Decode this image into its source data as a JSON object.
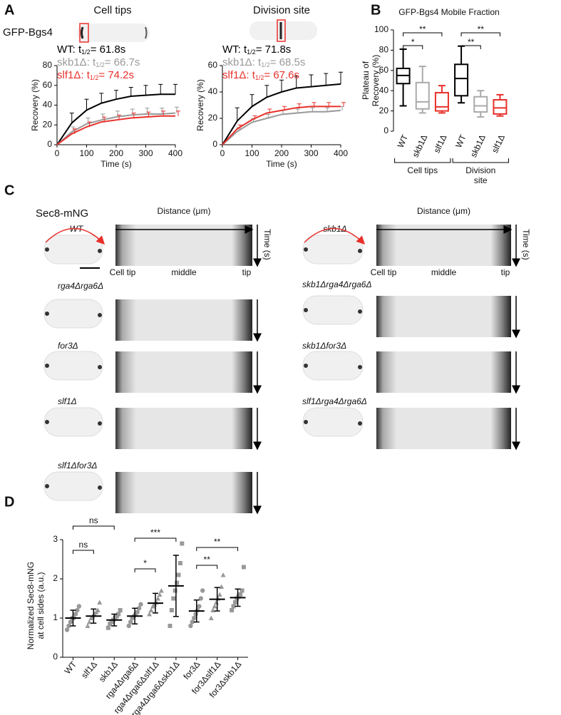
{
  "panel_labels": [
    "A",
    "B",
    "C",
    "D"
  ],
  "panel_a": {
    "reporter": "GFP-Bgs4"
  },
  "chart_data": [
    {
      "type": "line",
      "title": "Cell tips",
      "xlabel": "Time (s)",
      "ylabel": "Recovery (%)",
      "x": [
        0,
        50,
        100,
        150,
        200,
        250,
        300,
        350,
        400
      ],
      "xlim": [
        0,
        400
      ],
      "ylim": [
        0,
        80
      ],
      "xticks": [
        0,
        100,
        200,
        300,
        400
      ],
      "yticks": [
        0,
        20,
        40,
        60,
        80
      ],
      "series": [
        {
          "color": "#000000",
          "label": {
            "prefix": "WT: t",
            "sub": "1/2",
            "suffix": "= 61.8s"
          },
          "values": [
            0,
            22,
            35,
            42,
            46,
            49,
            50,
            51,
            51
          ],
          "errors": [
            null,
            10,
            11,
            10,
            9,
            9,
            10,
            10,
            10
          ]
        },
        {
          "color": "#999999",
          "label": {
            "prefix": "skb1Δ: t",
            "sub": "1/2",
            "suffix": "= 66.7s"
          },
          "values": [
            0,
            13,
            21,
            25,
            28,
            30,
            31,
            31,
            32
          ],
          "errors": [
            null,
            5,
            6,
            6,
            6,
            6,
            6,
            6,
            6
          ]
        },
        {
          "color": "#e8302a",
          "label": {
            "prefix": "slf1Δ: t",
            "sub": "1/2",
            "suffix": "= 74.2s"
          },
          "values": [
            0,
            11,
            18,
            23,
            25,
            27,
            28,
            29,
            29
          ],
          "errors": [
            null,
            5,
            5,
            5,
            5,
            5,
            5,
            5,
            5
          ]
        }
      ]
    },
    {
      "type": "line",
      "title": "Division site",
      "xlabel": "Time (s)",
      "ylabel": "Recovery (%)",
      "x": [
        0,
        50,
        100,
        150,
        200,
        250,
        300,
        350,
        400
      ],
      "xlim": [
        0,
        400
      ],
      "ylim": [
        0,
        60
      ],
      "xticks": [
        0,
        100,
        200,
        300,
        400
      ],
      "yticks": [
        0,
        20,
        40,
        60
      ],
      "series": [
        {
          "color": "#000000",
          "label": {
            "prefix": "WT: t",
            "sub": "1/2",
            "suffix": "= 71.8s"
          },
          "values": [
            0,
            18,
            29,
            36,
            40,
            43,
            44,
            45,
            46
          ],
          "errors": [
            null,
            10,
            9,
            9,
            9,
            9,
            9,
            9,
            9
          ]
        },
        {
          "color": "#999999",
          "label": {
            "prefix": "skb1Δ: t",
            "sub": "1/2",
            "suffix": "= 68.5s"
          },
          "values": [
            0,
            10,
            17,
            20,
            23,
            24,
            25,
            25,
            26
          ],
          "errors": [
            null,
            3,
            3,
            3,
            3,
            3,
            3,
            3,
            3
          ]
        },
        {
          "color": "#e8302a",
          "label": {
            "prefix": "slf1Δ: t",
            "sub": "1/2",
            "suffix": "= 67.6s"
          },
          "values": [
            0,
            12,
            19,
            24,
            26,
            28,
            29,
            29,
            29
          ],
          "errors": [
            null,
            3,
            3,
            3,
            3,
            3,
            3,
            3,
            3
          ]
        }
      ]
    },
    {
      "type": "box",
      "title": "GFP-Bgs4 Mobile Fraction",
      "ylabel_lines": [
        "Plateau of",
        "Recovery (%)"
      ],
      "ylim": [
        0,
        100
      ],
      "yticks": [
        0,
        20,
        40,
        60,
        80,
        100
      ],
      "categories": [
        "WT",
        "skb1Δ",
        "slf1Δ",
        "WT",
        "skb1Δ",
        "slf1Δ"
      ],
      "colors": [
        "#000000",
        "#aaaaaa",
        "#e8302a",
        "#000000",
        "#aaaaaa",
        "#e8302a"
      ],
      "boxes": [
        {
          "min": 25,
          "q1": 47,
          "median": 55,
          "q3": 62,
          "max": 81
        },
        {
          "min": 18,
          "q1": 22,
          "median": 29,
          "q3": 48,
          "max": 64
        },
        {
          "min": 18,
          "q1": 20,
          "median": 24,
          "q3": 38,
          "max": 45
        },
        {
          "min": 28,
          "q1": 35,
          "median": 52,
          "q3": 66,
          "max": 84
        },
        {
          "min": 14,
          "q1": 19,
          "median": 25,
          "q3": 34,
          "max": 40
        },
        {
          "min": 15,
          "q1": 17,
          "median": 23,
          "q3": 31,
          "max": 36
        }
      ],
      "groups": [
        {
          "lines": [
            "Cell tips"
          ],
          "from": 0,
          "to": 2
        },
        {
          "lines": [
            "Division",
            "site"
          ],
          "from": 3,
          "to": 5
        }
      ],
      "brackets": [
        {
          "label": "**",
          "from": 0,
          "to": 2
        },
        {
          "label": "*",
          "from": 0,
          "to": 1
        },
        {
          "label": "**",
          "from": 3,
          "to": 5
        },
        {
          "label": "**",
          "from": 3,
          "to": 4
        }
      ]
    },
    {
      "type": "dot",
      "ylabel_lines": [
        "Normalized Sec8-mNG",
        "at cell sides (a.u.)"
      ],
      "ylim": [
        0,
        3
      ],
      "yticks": [
        0,
        1,
        2,
        3
      ],
      "categories": [
        "WT",
        "slf1Δ",
        "skb1Δ",
        "rga4Δrga6Δ",
        "rga4Δrga6Δslf1Δ",
        "rga4Δrga6Δskb1Δ",
        "for3Δ",
        "for3Δslf1Δ",
        "for3Δskb1Δ"
      ],
      "color": "#999999",
      "markers": [
        "circle",
        "triangle",
        "square",
        "circle",
        "triangle",
        "square",
        "circle",
        "triangle",
        "square"
      ],
      "points": [
        [
          0.7,
          0.8,
          0.9,
          1.0,
          1.0,
          1.1,
          1.2,
          1.3
        ],
        [
          0.8,
          0.9,
          1.0,
          1.05,
          1.1,
          1.15,
          1.2,
          1.4
        ],
        [
          0.75,
          0.85,
          0.9,
          0.95,
          1.0,
          1.05,
          1.1,
          1.2
        ],
        [
          0.8,
          0.9,
          1.0,
          1.05,
          1.1,
          1.15,
          1.25,
          1.35
        ],
        [
          1.1,
          1.2,
          1.3,
          1.35,
          1.4,
          1.5,
          1.6,
          1.7
        ],
        [
          0.8,
          1.2,
          1.5,
          1.7,
          1.9,
          2.1,
          2.4,
          2.9
        ],
        [
          0.8,
          0.9,
          1.0,
          1.1,
          1.2,
          1.3,
          1.5,
          1.7
        ],
        [
          1.0,
          1.2,
          1.3,
          1.4,
          1.5,
          1.6,
          1.8,
          2.1
        ],
        [
          1.2,
          1.3,
          1.4,
          1.5,
          1.55,
          1.6,
          1.7,
          2.3
        ]
      ],
      "means": [
        1.0,
        1.05,
        0.95,
        1.05,
        1.38,
        1.82,
        1.18,
        1.48,
        1.52
      ],
      "sds": [
        0.2,
        0.18,
        0.15,
        0.2,
        0.25,
        0.78,
        0.28,
        0.3,
        0.22
      ],
      "brackets": [
        {
          "label": "ns",
          "from": 0,
          "to": 2
        },
        {
          "label": "ns",
          "from": 0,
          "to": 1
        },
        {
          "label": "***",
          "from": 3,
          "to": 5
        },
        {
          "label": "*",
          "from": 3,
          "to": 4
        },
        {
          "label": "**",
          "from": 6,
          "to": 8
        },
        {
          "label": "**",
          "from": 6,
          "to": 7
        }
      ]
    }
  ],
  "panel_c": {
    "title": "Sec8-mNG",
    "axis_labels": {
      "distance": "Distance (μm)",
      "time": "Time (s)",
      "cell_tip": "Cell tip",
      "middle": "middle",
      "tip": "tip"
    },
    "strains": [
      "WT",
      "rga4Δrga6Δ",
      "for3Δ",
      "slf1Δ",
      "slf1Δfor3Δ",
      "skb1Δ",
      "skb1Δrga4Δrga6Δ",
      "skb1Δfor3Δ",
      "slf1Δrga4Δrga6Δ"
    ]
  }
}
